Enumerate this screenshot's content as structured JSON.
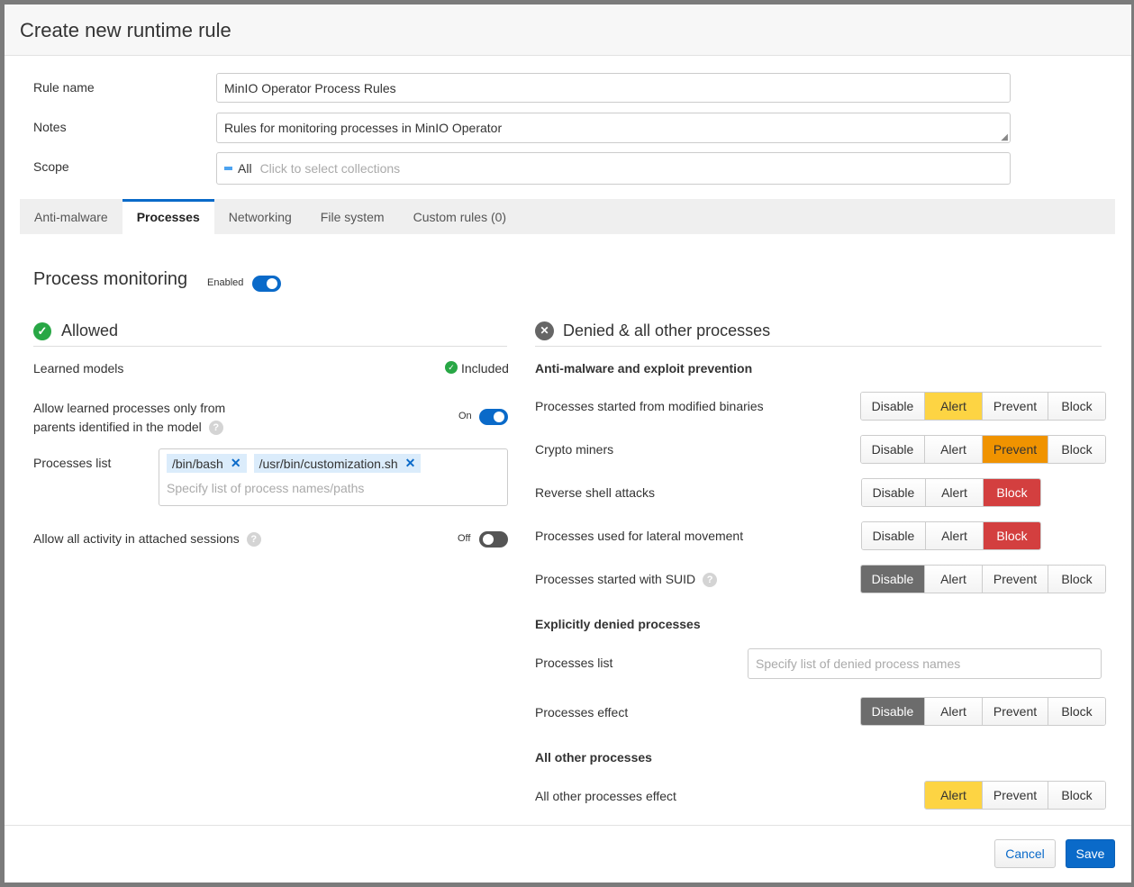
{
  "title": "Create new runtime rule",
  "form": {
    "rule_name_label": "Rule name",
    "rule_name_value": "MinIO Operator Process Rules",
    "notes_label": "Notes",
    "notes_value": "Rules for monitoring processes in MinIO Operator",
    "scope_label": "Scope",
    "scope_tag": "All",
    "scope_placeholder": "Click to select collections"
  },
  "tabs": [
    {
      "label": "Anti-malware"
    },
    {
      "label": "Processes",
      "active": true
    },
    {
      "label": "Networking"
    },
    {
      "label": "File system"
    },
    {
      "label": "Custom rules (0)"
    }
  ],
  "monitoring": {
    "title": "Process monitoring",
    "toggle_label": "Enabled",
    "enabled": true
  },
  "allowed": {
    "title": "Allowed",
    "learned_models_label": "Learned models",
    "learned_models_status": "Included",
    "allow_learned_line1": "Allow learned processes only from",
    "allow_learned_line2": "parents identified in the model",
    "allow_learned_toggle": "On",
    "processes_list_label": "Processes list",
    "processes": [
      "/bin/bash",
      "/usr/bin/customization.sh"
    ],
    "processes_placeholder": "Specify list of process names/paths",
    "attached_label": "Allow all activity in attached sessions",
    "attached_toggle": "Off"
  },
  "denied": {
    "title": "Denied & all other processes",
    "antimalware_heading": "Anti-malware and exploit prevention",
    "rows": [
      {
        "label": "Processes started from modified binaries",
        "options": [
          "Disable",
          "Alert",
          "Prevent",
          "Block"
        ],
        "selected": "Alert"
      },
      {
        "label": "Crypto miners",
        "options": [
          "Disable",
          "Alert",
          "Prevent",
          "Block"
        ],
        "selected": "Prevent"
      },
      {
        "label": "Reverse shell attacks",
        "options": [
          "Disable",
          "Alert",
          "Block"
        ],
        "selected": "Block"
      },
      {
        "label": "Processes used for lateral movement",
        "options": [
          "Disable",
          "Alert",
          "Block"
        ],
        "selected": "Block"
      },
      {
        "label": "Processes started with SUID",
        "options": [
          "Disable",
          "Alert",
          "Prevent",
          "Block"
        ],
        "selected": "Disable"
      }
    ],
    "explicit_heading": "Explicitly denied processes",
    "list_label": "Processes list",
    "list_placeholder": "Specify list of denied process names",
    "effect_label": "Processes effect",
    "effect_options": [
      "Disable",
      "Alert",
      "Prevent",
      "Block"
    ],
    "effect_selected": "Disable",
    "other_heading": "All other processes",
    "other_label": "All other processes effect",
    "other_options": [
      "Alert",
      "Prevent",
      "Block"
    ],
    "other_selected": "Alert"
  },
  "footer": {
    "cancel": "Cancel",
    "save": "Save"
  },
  "colors": {
    "accent": "#0a6ac9",
    "alert": "#fdd443",
    "prevent": "#f09300",
    "block": "#d33f3f",
    "disable": "#6c6c6c",
    "success": "#28a745"
  }
}
